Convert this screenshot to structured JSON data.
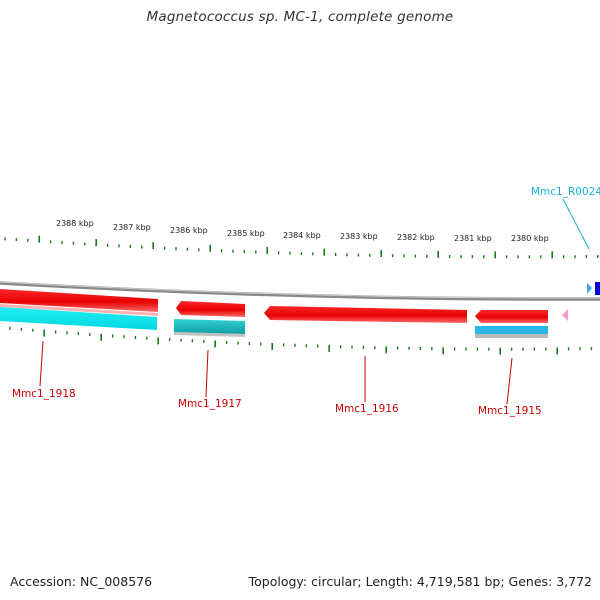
{
  "title": "Magnetococcus sp. MC-1, complete genome",
  "footer": {
    "accession": "Accession: NC_008576",
    "summary": "Topology: circular; Length: 4,719,581 bp; Genes: 3,772"
  },
  "scale": {
    "unit": "kbp",
    "ticks": [
      "2388 kbp",
      "2387 kbp",
      "2386 kbp",
      "2385 kbp",
      "2384 kbp",
      "2383 kbp",
      "2382 kbp",
      "2381 kbp",
      "2380 kbp"
    ]
  },
  "features": {
    "genes": [
      {
        "id": "Mmc1_1918",
        "label": "Mmc1_1918",
        "strand": "reverse"
      },
      {
        "id": "Mmc1_1917",
        "label": "Mmc1_1917",
        "strand": "reverse"
      },
      {
        "id": "Mmc1_1916",
        "label": "Mmc1_1916",
        "strand": "reverse"
      },
      {
        "id": "Mmc1_1915",
        "label": "Mmc1_1915",
        "strand": "reverse"
      }
    ],
    "rna": {
      "id": "Mmc1_R0024",
      "label": "Mmc1_R0024"
    }
  },
  "colors": {
    "gene": "#ff0000",
    "gene_label": "#cc0000",
    "cds": "#00e5ee",
    "rna_label": "#1ab0d6",
    "backbone": "#888888",
    "ticks": "#1a7a1a",
    "other": "#ff9ccf",
    "blue_block": "#0000dd",
    "light_blue": "#3aaaff"
  }
}
